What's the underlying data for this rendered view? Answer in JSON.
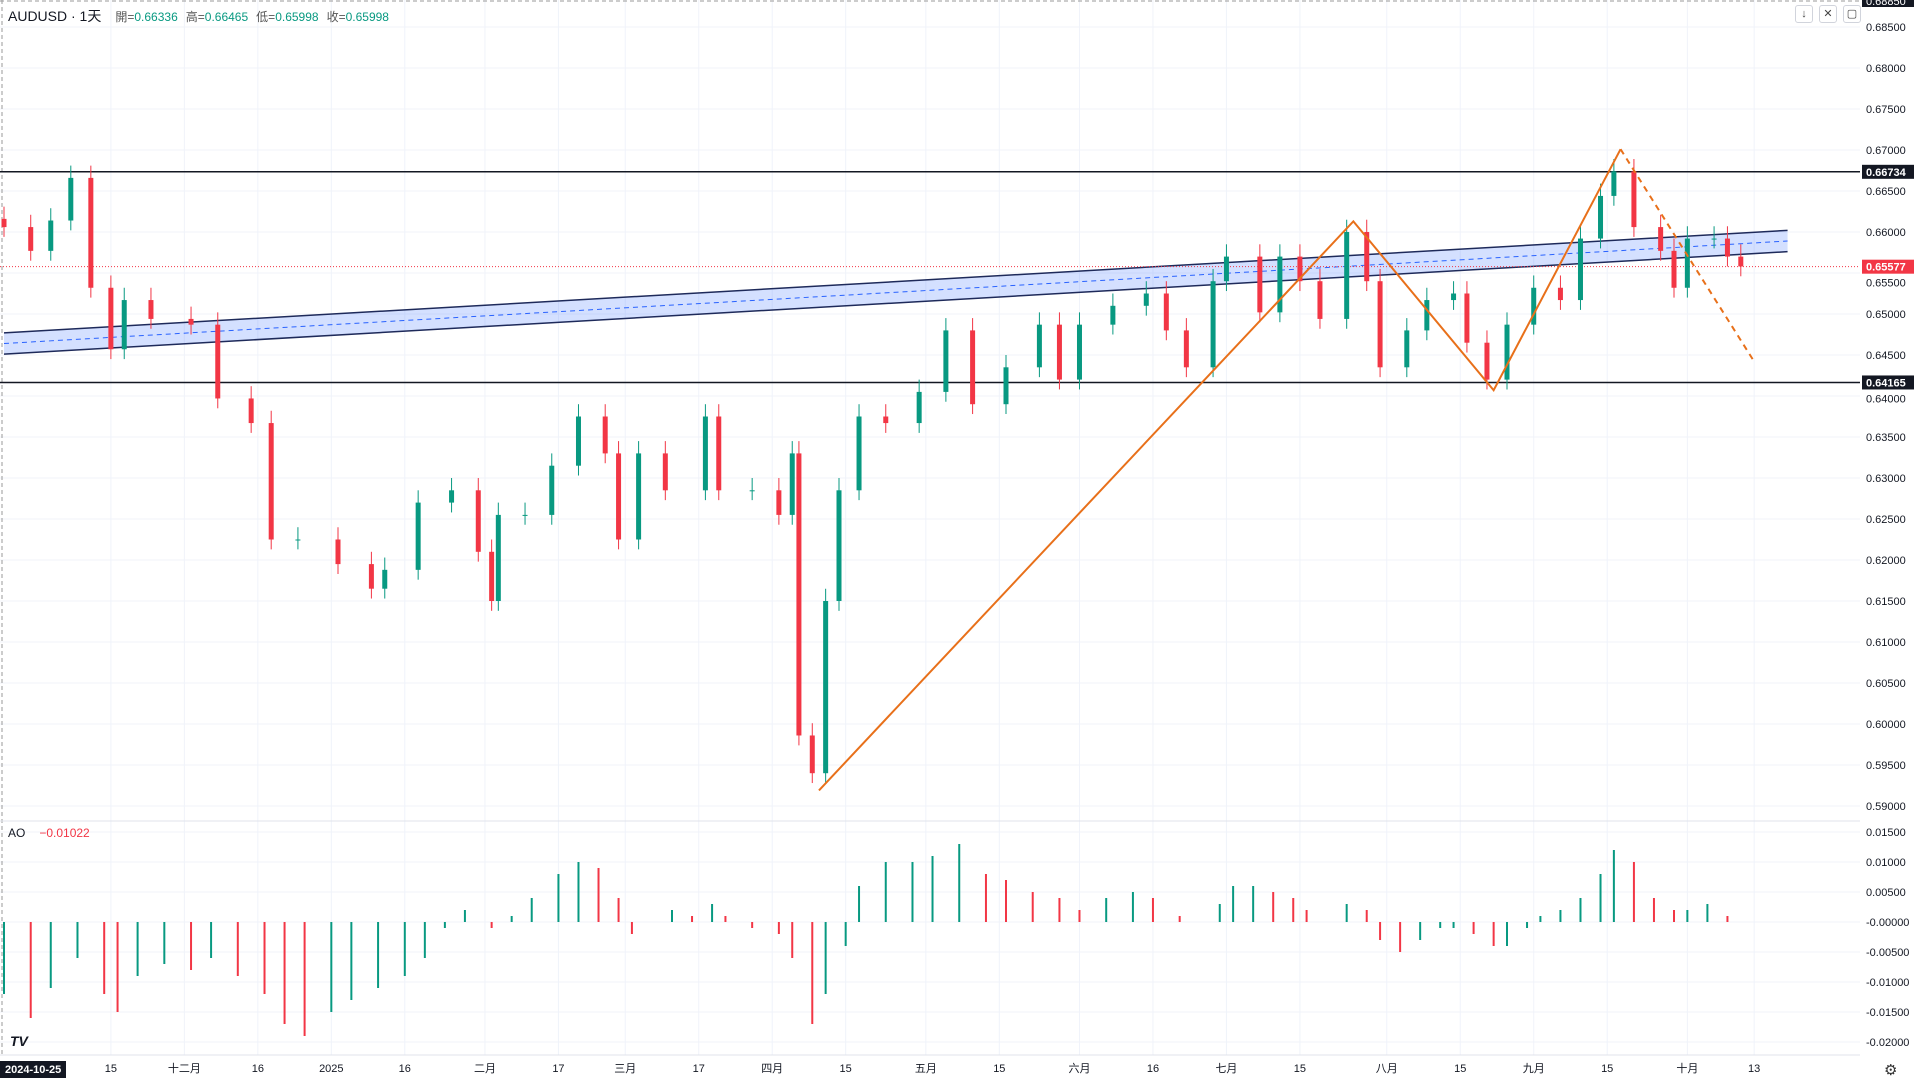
{
  "header": {
    "symbol": "AUDUSD · 1天",
    "open_label": "開=",
    "open": "0.66336",
    "high_label": "高=",
    "high": "0.66465",
    "low_label": "低=",
    "low": "0.65998",
    "close_label": "收=",
    "close": "0.65998"
  },
  "indicator": {
    "name": "AO",
    "value": "−0.01022"
  },
  "buttons": {
    "scroll_down": "↓",
    "collapse": "✕",
    "fullscreen": "▢"
  },
  "logo": "TV",
  "colors": {
    "up": "#089981",
    "down": "#f23645",
    "channel": "#2962ff",
    "zigzag": "#e8701a",
    "hline": "#131722"
  },
  "chart_data": {
    "type": "candlestick",
    "title": "AUDUSD 1D",
    "price_axis": {
      "range": [
        0.59,
        0.6885
      ],
      "ticks": [
        "0.68500",
        "0.68000",
        "0.67500",
        "0.67000",
        "0.66500",
        "0.66000",
        "0.65500",
        "0.65000",
        "0.64500",
        "0.64000",
        "0.63500",
        "0.63000",
        "0.62500",
        "0.62000",
        "0.61500",
        "0.61000",
        "0.60500",
        "0.60000",
        "0.59500",
        "0.59000"
      ],
      "top_label": "0.68850"
    },
    "price_labels": {
      "resistance": "0.66734",
      "support": "0.64165",
      "last": "0.65577"
    },
    "levels": {
      "resistance": 0.66734,
      "support": 0.64165,
      "last": 0.65577
    },
    "time_axis": {
      "crosshair": "2024-10-25",
      "ticks": [
        {
          "bar": 16,
          "label": "15"
        },
        {
          "bar": 27,
          "label": "十二月"
        },
        {
          "bar": 38,
          "label": "16"
        },
        {
          "bar": 49,
          "label": "2025"
        },
        {
          "bar": 60,
          "label": "16"
        },
        {
          "bar": 72,
          "label": "二月"
        },
        {
          "bar": 83,
          "label": "17"
        },
        {
          "bar": 93,
          "label": "三月"
        },
        {
          "bar": 104,
          "label": "17"
        },
        {
          "bar": 115,
          "label": "四月"
        },
        {
          "bar": 126,
          "label": "15"
        },
        {
          "bar": 138,
          "label": "五月"
        },
        {
          "bar": 149,
          "label": "15"
        },
        {
          "bar": 161,
          "label": "六月"
        },
        {
          "bar": 172,
          "label": "16"
        },
        {
          "bar": 183,
          "label": "七月"
        },
        {
          "bar": 194,
          "label": "15"
        },
        {
          "bar": 207,
          "label": "八月"
        },
        {
          "bar": 218,
          "label": "15"
        },
        {
          "bar": 229,
          "label": "九月"
        },
        {
          "bar": 240,
          "label": "15"
        },
        {
          "bar": 252,
          "label": "十月"
        },
        {
          "bar": 262,
          "label": "13"
        }
      ]
    },
    "closes": [
      [
        0,
        0.6606
      ],
      [
        4,
        0.6577
      ],
      [
        7,
        0.6614
      ],
      [
        10,
        0.6666
      ],
      [
        13,
        0.6532
      ],
      [
        16,
        0.6457
      ],
      [
        18,
        0.6517
      ],
      [
        22,
        0.6494
      ],
      [
        28,
        0.6487
      ],
      [
        32,
        0.6397
      ],
      [
        37,
        0.6367
      ],
      [
        40,
        0.6225
      ],
      [
        44,
        0.6225
      ],
      [
        50,
        0.6195
      ],
      [
        55,
        0.6165
      ],
      [
        57,
        0.6188
      ],
      [
        62,
        0.627
      ],
      [
        67,
        0.6285
      ],
      [
        71,
        0.621
      ],
      [
        73,
        0.615
      ],
      [
        74,
        0.6255
      ],
      [
        78,
        0.6255
      ],
      [
        82,
        0.6315
      ],
      [
        86,
        0.6375
      ],
      [
        90,
        0.633
      ],
      [
        92,
        0.6225
      ],
      [
        95,
        0.633
      ],
      [
        99,
        0.6285
      ],
      [
        105,
        0.6375
      ],
      [
        107,
        0.6285
      ],
      [
        112,
        0.6285
      ],
      [
        116,
        0.6255
      ],
      [
        118,
        0.633
      ],
      [
        119,
        0.5986
      ],
      [
        121,
        0.594
      ],
      [
        123,
        0.615
      ],
      [
        125,
        0.6285
      ],
      [
        128,
        0.6375
      ],
      [
        132,
        0.6367
      ],
      [
        137,
        0.6405
      ],
      [
        141,
        0.648
      ],
      [
        145,
        0.639
      ],
      [
        150,
        0.6435
      ],
      [
        155,
        0.6487
      ],
      [
        158,
        0.642
      ],
      [
        161,
        0.6487
      ],
      [
        166,
        0.651
      ],
      [
        171,
        0.6525
      ],
      [
        174,
        0.648
      ],
      [
        177,
        0.6435
      ],
      [
        181,
        0.654
      ],
      [
        183,
        0.657
      ],
      [
        188,
        0.6502
      ],
      [
        191,
        0.657
      ],
      [
        194,
        0.654
      ],
      [
        197,
        0.6494
      ],
      [
        201,
        0.66
      ],
      [
        204,
        0.654
      ],
      [
        206,
        0.6435
      ],
      [
        210,
        0.648
      ],
      [
        213,
        0.6517
      ],
      [
        217,
        0.6525
      ],
      [
        219,
        0.6465
      ],
      [
        222,
        0.642
      ],
      [
        225,
        0.6487
      ],
      [
        229,
        0.6532
      ],
      [
        233,
        0.6517
      ],
      [
        236,
        0.6592
      ],
      [
        239,
        0.6644
      ],
      [
        241,
        0.6674
      ],
      [
        244,
        0.6606
      ],
      [
        248,
        0.6577
      ],
      [
        250,
        0.6532
      ],
      [
        252,
        0.6592
      ],
      [
        256,
        0.6592
      ],
      [
        258,
        0.657
      ],
      [
        260,
        0.6558
      ]
    ],
    "ao_axis": {
      "range": [
        -0.021,
        0.0165
      ],
      "ticks": [
        "0.01500",
        "0.01000",
        "0.00500",
        "-0.00000",
        "-0.00500",
        "-0.01000",
        "-0.01500",
        "-0.02000"
      ]
    },
    "ao": [
      [
        0,
        -0.012
      ],
      [
        4,
        -0.016
      ],
      [
        7,
        -0.011
      ],
      [
        11,
        -0.006
      ],
      [
        15,
        -0.012
      ],
      [
        17,
        -0.015
      ],
      [
        20,
        -0.009
      ],
      [
        24,
        -0.007
      ],
      [
        28,
        -0.008
      ],
      [
        31,
        -0.006
      ],
      [
        35,
        -0.009
      ],
      [
        39,
        -0.012
      ],
      [
        42,
        -0.017
      ],
      [
        45,
        -0.019
      ],
      [
        49,
        -0.015
      ],
      [
        52,
        -0.013
      ],
      [
        56,
        -0.011
      ],
      [
        60,
        -0.009
      ],
      [
        63,
        -0.006
      ],
      [
        66,
        -0.001
      ],
      [
        69,
        0.002
      ],
      [
        72,
        0.0
      ],
      [
        73,
        -0.001
      ],
      [
        76,
        0.001
      ],
      [
        79,
        0.004
      ],
      [
        83,
        0.008
      ],
      [
        86,
        0.01
      ],
      [
        89,
        0.009
      ],
      [
        92,
        0.004
      ],
      [
        94,
        -0.002
      ],
      [
        97,
        0.0
      ],
      [
        100,
        0.002
      ],
      [
        103,
        0.001
      ],
      [
        106,
        0.003
      ],
      [
        108,
        0.001
      ],
      [
        112,
        -0.001
      ],
      [
        116,
        -0.002
      ],
      [
        118,
        -0.006
      ],
      [
        121,
        -0.017
      ],
      [
        123,
        -0.012
      ],
      [
        126,
        -0.004
      ],
      [
        128,
        0.006
      ],
      [
        132,
        0.01
      ],
      [
        136,
        0.01
      ],
      [
        139,
        0.011
      ],
      [
        143,
        0.013
      ],
      [
        147,
        0.008
      ],
      [
        150,
        0.007
      ],
      [
        154,
        0.005
      ],
      [
        158,
        0.004
      ],
      [
        161,
        0.002
      ],
      [
        165,
        0.004
      ],
      [
        169,
        0.005
      ],
      [
        172,
        0.004
      ],
      [
        176,
        0.001
      ],
      [
        179,
        0.0
      ],
      [
        182,
        0.003
      ],
      [
        184,
        0.006
      ],
      [
        187,
        0.006
      ],
      [
        190,
        0.005
      ],
      [
        193,
        0.004
      ],
      [
        195,
        0.002
      ],
      [
        198,
        0.0
      ],
      [
        201,
        0.003
      ],
      [
        204,
        0.002
      ],
      [
        206,
        -0.003
      ],
      [
        209,
        -0.005
      ],
      [
        212,
        -0.003
      ],
      [
        215,
        -0.001
      ],
      [
        217,
        -0.001
      ],
      [
        220,
        -0.002
      ],
      [
        223,
        -0.004
      ],
      [
        225,
        -0.004
      ],
      [
        228,
        -0.001
      ],
      [
        230,
        0.001
      ],
      [
        233,
        0.002
      ],
      [
        236,
        0.004
      ],
      [
        239,
        0.008
      ],
      [
        241,
        0.012
      ],
      [
        244,
        0.01
      ],
      [
        247,
        0.004
      ],
      [
        250,
        0.002
      ],
      [
        252,
        0.002
      ],
      [
        255,
        0.003
      ],
      [
        258,
        0.001
      ],
      [
        260,
        0.0
      ]
    ],
    "drawings": {
      "channel": {
        "start": [
          0,
          0.6464
        ],
        "end": [
          267,
          0.6589
        ],
        "width": 0.0026
      },
      "zigzag": [
        [
          122,
          0.5919
        ],
        [
          202,
          0.6613
        ],
        [
          223,
          0.6407
        ],
        [
          242,
          0.6701
        ]
      ],
      "projection": [
        [
          242,
          0.6701
        ],
        [
          262,
          0.6442
        ]
      ]
    }
  }
}
